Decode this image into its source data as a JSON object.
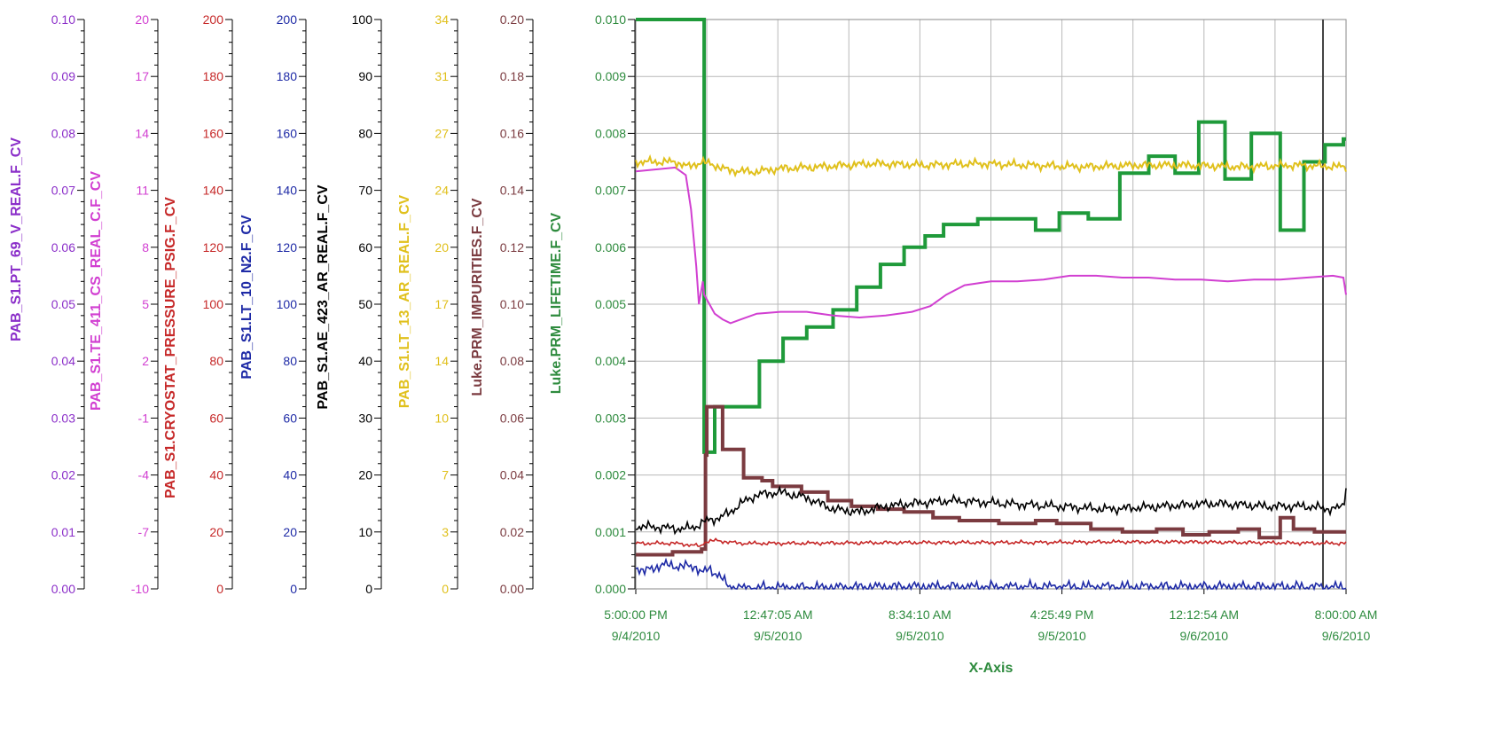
{
  "chart_data": {
    "type": "line",
    "grid": true,
    "x_axis": {
      "label": "X-Axis",
      "tick_labels": [
        [
          "5:00:00 PM",
          "9/4/2010"
        ],
        [
          "12:47:05 AM",
          "9/5/2010"
        ],
        [
          "8:34:10 AM",
          "9/5/2010"
        ],
        [
          "4:25:49 PM",
          "9/5/2010"
        ],
        [
          "12:12:54 AM",
          "9/6/2010"
        ],
        [
          "8:00:00 AM",
          "9/6/2010"
        ]
      ],
      "range": [
        "2010-09-04T17:00:00",
        "2010-09-06T08:00:00"
      ],
      "color": "#2e8b3e"
    },
    "y_axes": [
      {
        "name": "PAB_S1.PT_69_V_REAL.F_CV",
        "color": "#8b2fc9",
        "min": 0.0,
        "max": 0.1,
        "tick_labels": [
          "0.00",
          "0.01",
          "0.02",
          "0.03",
          "0.04",
          "0.05",
          "0.06",
          "0.07",
          "0.08",
          "0.09",
          "0.10"
        ]
      },
      {
        "name": "PAB_S1.TE_411_CS_REAL_C.F_CV",
        "color": "#d13fd1",
        "min": -10,
        "max": 20,
        "tick_labels": [
          "-10",
          "-7",
          "-4",
          "-1",
          "2",
          "5",
          "8",
          "11",
          "14",
          "17",
          "20"
        ]
      },
      {
        "name": "PAB_S1.CRYOSTAT_PRESSURE_PSIG.F_CV",
        "color": "#c62828",
        "min": 0,
        "max": 200,
        "tick_labels": [
          "0",
          "20",
          "40",
          "60",
          "80",
          "100",
          "120",
          "140",
          "160",
          "180",
          "200"
        ]
      },
      {
        "name": "PAB_S1.LT_10_N2.F_CV",
        "color": "#1e2aa6",
        "min": 0,
        "max": 200,
        "tick_labels": [
          "0",
          "20",
          "40",
          "60",
          "80",
          "100",
          "120",
          "140",
          "160",
          "180",
          "200"
        ]
      },
      {
        "name": "PAB_S1.AE_423_AR_REAL.F_CV",
        "color": "#000000",
        "min": 0,
        "max": 100,
        "tick_labels": [
          "0",
          "10",
          "20",
          "30",
          "40",
          "50",
          "60",
          "70",
          "80",
          "90",
          "100"
        ]
      },
      {
        "name": "PAB_S1.LT_13_AR_REAL.F_CV",
        "color": "#e0c01c",
        "min": 0,
        "max": 34,
        "tick_labels": [
          "0",
          "3",
          "7",
          "10",
          "14",
          "17",
          "20",
          "24",
          "27",
          "31",
          "34"
        ]
      },
      {
        "name": "Luke.PRM_IMPURITIES.F_CV",
        "color": "#7b3b40",
        "min": 0.0,
        "max": 0.2,
        "tick_labels": [
          "0.00",
          "0.02",
          "0.04",
          "0.06",
          "0.08",
          "0.10",
          "0.12",
          "0.14",
          "0.16",
          "0.18",
          "0.20"
        ]
      },
      {
        "name": "Luke.PRM_LIFETIME.F_CV",
        "color": "#2e8b3e",
        "min": 0.0,
        "max": 0.01,
        "tick_labels": [
          "0.000",
          "0.001",
          "0.002",
          "0.003",
          "0.004",
          "0.005",
          "0.006",
          "0.007",
          "0.008",
          "0.009",
          "0.010"
        ]
      }
    ],
    "series": [
      {
        "name": "Luke.PRM_LIFETIME.F_CV",
        "axis": 7,
        "color": "#1f9a3a",
        "width": 4,
        "step": true,
        "points": [
          [
            0,
            0.01
          ],
          [
            2.6,
            0.01
          ],
          [
            2.6,
            0.0024
          ],
          [
            3.0,
            0.0024
          ],
          [
            3.0,
            0.0032
          ],
          [
            4.7,
            0.0032
          ],
          [
            4.7,
            0.004
          ],
          [
            5.6,
            0.004
          ],
          [
            5.6,
            0.0044
          ],
          [
            6.5,
            0.0044
          ],
          [
            6.5,
            0.0046
          ],
          [
            7.5,
            0.0046
          ],
          [
            7.5,
            0.0049
          ],
          [
            8.4,
            0.0049
          ],
          [
            8.4,
            0.0053
          ],
          [
            9.3,
            0.0053
          ],
          [
            9.3,
            0.0057
          ],
          [
            10.2,
            0.0057
          ],
          [
            10.2,
            0.006
          ],
          [
            11.0,
            0.006
          ],
          [
            11.0,
            0.0062
          ],
          [
            11.7,
            0.0062
          ],
          [
            11.7,
            0.0064
          ],
          [
            13.0,
            0.0064
          ],
          [
            13.0,
            0.0065
          ],
          [
            15.2,
            0.0065
          ],
          [
            15.2,
            0.0063
          ],
          [
            16.1,
            0.0063
          ],
          [
            16.1,
            0.0066
          ],
          [
            17.2,
            0.0066
          ],
          [
            17.2,
            0.0065
          ],
          [
            18.4,
            0.0065
          ],
          [
            18.4,
            0.0073
          ],
          [
            19.5,
            0.0073
          ],
          [
            19.5,
            0.0076
          ],
          [
            20.5,
            0.0076
          ],
          [
            20.5,
            0.0073
          ],
          [
            21.4,
            0.0073
          ],
          [
            21.4,
            0.0082
          ],
          [
            22.4,
            0.0082
          ],
          [
            22.4,
            0.0072
          ],
          [
            23.4,
            0.0072
          ],
          [
            23.4,
            0.008
          ],
          [
            24.5,
            0.008
          ],
          [
            24.5,
            0.0063
          ],
          [
            25.4,
            0.0063
          ],
          [
            25.4,
            0.0075
          ],
          [
            26.2,
            0.0075
          ],
          [
            26.2,
            0.0078
          ],
          [
            26.9,
            0.0078
          ],
          [
            26.9,
            0.0079
          ],
          [
            27.0,
            0.0079
          ]
        ]
      },
      {
        "name": "PAB_S1.TE_411_CS_REAL_C.F_CV",
        "axis": 1,
        "color": "#d13fd1",
        "width": 2,
        "step": false,
        "points": [
          [
            0,
            12.0
          ],
          [
            1.5,
            12.2
          ],
          [
            1.9,
            11.8
          ],
          [
            2.1,
            10.0
          ],
          [
            2.3,
            7.0
          ],
          [
            2.4,
            5.0
          ],
          [
            2.55,
            6.2
          ],
          [
            2.6,
            5.5
          ],
          [
            2.8,
            5.0
          ],
          [
            3.0,
            4.5
          ],
          [
            3.3,
            4.2
          ],
          [
            3.6,
            4.0
          ],
          [
            4.0,
            4.2
          ],
          [
            4.6,
            4.5
          ],
          [
            5.5,
            4.6
          ],
          [
            6.5,
            4.6
          ],
          [
            7.5,
            4.4
          ],
          [
            8.5,
            4.3
          ],
          [
            9.5,
            4.4
          ],
          [
            10.5,
            4.6
          ],
          [
            11.2,
            4.9
          ],
          [
            11.8,
            5.5
          ],
          [
            12.5,
            6.0
          ],
          [
            13.5,
            6.2
          ],
          [
            14.5,
            6.2
          ],
          [
            15.5,
            6.3
          ],
          [
            16.5,
            6.5
          ],
          [
            17.5,
            6.5
          ],
          [
            18.5,
            6.4
          ],
          [
            19.5,
            6.4
          ],
          [
            20.5,
            6.3
          ],
          [
            21.5,
            6.3
          ],
          [
            22.5,
            6.2
          ],
          [
            23.5,
            6.3
          ],
          [
            24.5,
            6.3
          ],
          [
            25.5,
            6.4
          ],
          [
            26.5,
            6.5
          ],
          [
            26.9,
            6.4
          ],
          [
            27.0,
            5.5
          ]
        ]
      },
      {
        "name": "PAB_S1.LT_13_AR_REAL.F_CV",
        "axis": 5,
        "color": "#e0c01c",
        "width": 2,
        "step": false,
        "noise": 0.3,
        "points": [
          [
            0,
            25.5
          ],
          [
            1.5,
            25.5
          ],
          [
            2.0,
            25.2
          ],
          [
            2.5,
            25.5
          ],
          [
            3.0,
            25.3
          ],
          [
            3.5,
            25.0
          ],
          [
            4.5,
            24.9
          ],
          [
            5.5,
            25.1
          ],
          [
            7.0,
            25.2
          ],
          [
            9.0,
            25.4
          ],
          [
            11.0,
            25.3
          ],
          [
            13.0,
            25.4
          ],
          [
            15.0,
            25.3
          ],
          [
            17.0,
            25.2
          ],
          [
            19.0,
            25.3
          ],
          [
            21.0,
            25.3
          ],
          [
            23.0,
            25.2
          ],
          [
            25.0,
            25.3
          ],
          [
            27.0,
            25.2
          ]
        ]
      },
      {
        "name": "Luke.PRM_IMPURITIES.F_CV",
        "axis": 6,
        "color": "#7b3b40",
        "width": 4,
        "step": true,
        "points": [
          [
            0,
            0.012
          ],
          [
            1.4,
            0.012
          ],
          [
            1.4,
            0.013
          ],
          [
            2.5,
            0.013
          ],
          [
            2.5,
            0.014
          ],
          [
            2.65,
            0.014
          ],
          [
            2.65,
            0.047
          ],
          [
            2.7,
            0.047
          ],
          [
            2.7,
            0.064
          ],
          [
            3.3,
            0.064
          ],
          [
            3.3,
            0.049
          ],
          [
            4.1,
            0.049
          ],
          [
            4.1,
            0.039
          ],
          [
            4.8,
            0.039
          ],
          [
            4.8,
            0.038
          ],
          [
            5.2,
            0.038
          ],
          [
            5.2,
            0.036
          ],
          [
            6.3,
            0.036
          ],
          [
            6.3,
            0.034
          ],
          [
            7.3,
            0.034
          ],
          [
            7.3,
            0.031
          ],
          [
            8.2,
            0.031
          ],
          [
            8.2,
            0.029
          ],
          [
            9.2,
            0.029
          ],
          [
            9.2,
            0.028
          ],
          [
            10.2,
            0.028
          ],
          [
            10.2,
            0.027
          ],
          [
            11.3,
            0.027
          ],
          [
            11.3,
            0.025
          ],
          [
            12.3,
            0.025
          ],
          [
            12.3,
            0.024
          ],
          [
            13.8,
            0.024
          ],
          [
            13.8,
            0.023
          ],
          [
            15.2,
            0.023
          ],
          [
            15.2,
            0.024
          ],
          [
            16.0,
            0.024
          ],
          [
            16.0,
            0.023
          ],
          [
            17.3,
            0.023
          ],
          [
            17.3,
            0.021
          ],
          [
            18.5,
            0.021
          ],
          [
            18.5,
            0.02
          ],
          [
            19.8,
            0.02
          ],
          [
            19.8,
            0.021
          ],
          [
            20.8,
            0.021
          ],
          [
            20.8,
            0.019
          ],
          [
            21.8,
            0.019
          ],
          [
            21.8,
            0.02
          ],
          [
            22.9,
            0.02
          ],
          [
            22.9,
            0.021
          ],
          [
            23.7,
            0.021
          ],
          [
            23.7,
            0.018
          ],
          [
            24.5,
            0.018
          ],
          [
            24.5,
            0.025
          ],
          [
            25.0,
            0.025
          ],
          [
            25.0,
            0.021
          ],
          [
            25.8,
            0.021
          ],
          [
            25.8,
            0.02
          ],
          [
            27.0,
            0.02
          ]
        ]
      },
      {
        "name": "PAB_S1.AE_423_AR_REAL.F_CV",
        "axis": 4,
        "color": "#000000",
        "width": 1.6,
        "step": false,
        "noise": 1.0,
        "points": [
          [
            0,
            11.0
          ],
          [
            1.0,
            10.8
          ],
          [
            1.8,
            10.5
          ],
          [
            2.3,
            11.0
          ],
          [
            2.7,
            12.0
          ],
          [
            3.2,
            12.5
          ],
          [
            3.6,
            13.5
          ],
          [
            4.0,
            15.0
          ],
          [
            4.6,
            16.5
          ],
          [
            5.5,
            17.0
          ],
          [
            6.5,
            16.0
          ],
          [
            7.5,
            14.0
          ],
          [
            8.5,
            13.5
          ],
          [
            9.5,
            14.5
          ],
          [
            10.5,
            15.0
          ],
          [
            12.0,
            15.5
          ],
          [
            14.0,
            15.0
          ],
          [
            16.0,
            14.5
          ],
          [
            18.0,
            14.0
          ],
          [
            20.0,
            14.5
          ],
          [
            22.0,
            15.0
          ],
          [
            24.0,
            14.5
          ],
          [
            25.5,
            14.5
          ],
          [
            26.5,
            14.0
          ],
          [
            26.9,
            14.5
          ],
          [
            27.0,
            18.0
          ]
        ]
      },
      {
        "name": "PAB_S1.CRYOSTAT_PRESSURE_PSIG.F_CV",
        "axis": 2,
        "color": "#c62828",
        "width": 1.6,
        "step": false,
        "noise": 0.8,
        "points": [
          [
            0,
            16.0
          ],
          [
            1.5,
            16.0
          ],
          [
            2.5,
            15.0
          ],
          [
            2.6,
            16.5
          ],
          [
            3.0,
            17.0
          ],
          [
            4.0,
            16.0
          ],
          [
            6.0,
            16.0
          ],
          [
            9.0,
            16.2
          ],
          [
            12.0,
            16.3
          ],
          [
            15.0,
            16.3
          ],
          [
            18.0,
            16.5
          ],
          [
            21.0,
            16.5
          ],
          [
            24.0,
            16.2
          ],
          [
            27.0,
            16.0
          ]
        ]
      },
      {
        "name": "PAB_S1.LT_10_N2.F_CV",
        "axis": 3,
        "color": "#1e2aa6",
        "width": 1.6,
        "step": false,
        "noise": 2.2,
        "points": [
          [
            0,
            8.0
          ],
          [
            0.3,
            6.0
          ],
          [
            1.0,
            8.5
          ],
          [
            1.6,
            8.0
          ],
          [
            2.3,
            7.8
          ],
          [
            2.5,
            5.5
          ],
          [
            2.8,
            7.0
          ],
          [
            3.2,
            4.5
          ],
          [
            3.5,
            1.0
          ],
          [
            4.0,
            0.3
          ],
          [
            5.0,
            0.5
          ],
          [
            7.0,
            0.5
          ],
          [
            10.0,
            0.8
          ],
          [
            13.0,
            0.8
          ],
          [
            16.0,
            0.8
          ],
          [
            19.0,
            0.8
          ],
          [
            22.0,
            0.8
          ],
          [
            25.0,
            0.8
          ],
          [
            27.0,
            0.6
          ]
        ]
      }
    ]
  }
}
